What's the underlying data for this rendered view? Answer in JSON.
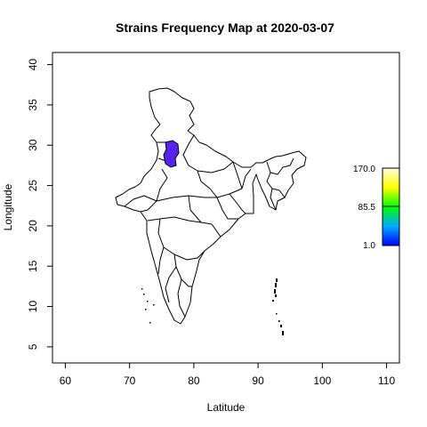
{
  "title": "Strains Frequency Map at  2020-03-07",
  "chart_data": {
    "type": "heatmap",
    "title": "Strains Frequency Map at  2020-03-07",
    "xlabel": "Latitude",
    "ylabel": "Longitude",
    "xlim": [
      58,
      112
    ],
    "ylim": [
      3,
      41.5
    ],
    "xticks": [
      60,
      70,
      80,
      90,
      100,
      110
    ],
    "yticks": [
      5,
      10,
      15,
      20,
      25,
      30,
      35,
      40
    ],
    "legend": {
      "placement": "right",
      "min": 1.0,
      "mid": 85.5,
      "max": 170.0,
      "labels": [
        "170.0",
        "85.5",
        "1.0"
      ],
      "colors": [
        "#0000ff",
        "#00ffff",
        "#00ff00",
        "#ffff00",
        "#ffffff"
      ]
    },
    "highlighted_region": {
      "color": "#5522ee",
      "description": "northern state (value near minimum)"
    }
  }
}
